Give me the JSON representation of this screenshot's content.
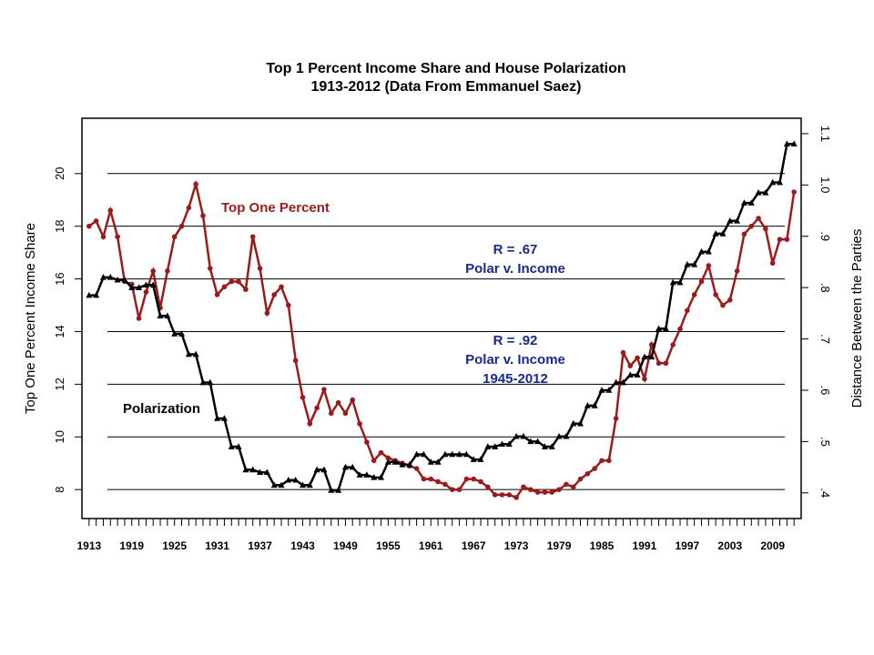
{
  "chart_data": {
    "type": "line",
    "title": "Top 1 Percent Income Share and House Polarization",
    "subtitle": "1913-2012 (Data From Emmanuel Saez)",
    "ylabel": "Top One Percent Income Share",
    "y2label": "Distance Between the Parties",
    "ylim": [
      6.9,
      22.1
    ],
    "y2lim": [
      0.35,
      1.13
    ],
    "xlim": [
      1912,
      2013
    ],
    "grid": "horizontal",
    "y_ticks": [
      "8",
      "10",
      "12",
      "14",
      "16",
      "18",
      "20"
    ],
    "y2_ticks": [
      ".4",
      ".5",
      ".6",
      ".7",
      ".8",
      ".9",
      "1.0",
      "1.1"
    ],
    "x_tick_labels": [
      "1913",
      "1919",
      "1925",
      "1931",
      "1937",
      "1943",
      "1949",
      "1955",
      "1961",
      "1967",
      "1973",
      "1979",
      "1985",
      "1991",
      "1997",
      "2003",
      "2009"
    ],
    "colors": {
      "income": "#9b1b1b",
      "polarization": "#000000",
      "annotation": "#1a2a8a"
    },
    "annotations": {
      "income_series_label": "Top One Percent",
      "polarization_series_label": "Polarization",
      "r1_line1": "R = .67",
      "r1_line2": "Polar v. Income",
      "r2_line1": "R = .92",
      "r2_line2": "Polar v. Income",
      "r2_line3": "1945-2012"
    },
    "series": [
      {
        "name": "Top One Percent",
        "axis": "left",
        "x": [
          1913,
          1914,
          1915,
          1916,
          1917,
          1918,
          1919,
          1920,
          1921,
          1922,
          1923,
          1924,
          1925,
          1926,
          1927,
          1928,
          1929,
          1930,
          1931,
          1932,
          1933,
          1934,
          1935,
          1936,
          1937,
          1938,
          1939,
          1940,
          1941,
          1942,
          1943,
          1944,
          1945,
          1946,
          1947,
          1948,
          1949,
          1950,
          1951,
          1952,
          1953,
          1954,
          1955,
          1956,
          1957,
          1958,
          1959,
          1960,
          1961,
          1962,
          1963,
          1964,
          1965,
          1966,
          1967,
          1968,
          1969,
          1970,
          1971,
          1972,
          1973,
          1974,
          1975,
          1976,
          1977,
          1978,
          1979,
          1980,
          1981,
          1982,
          1983,
          1984,
          1985,
          1986,
          1987,
          1988,
          1989,
          1990,
          1991,
          1992,
          1993,
          1994,
          1995,
          1996,
          1997,
          1998,
          1999,
          2000,
          2001,
          2002,
          2003,
          2004,
          2005,
          2006,
          2007,
          2008,
          2009,
          2010,
          2011,
          2012
        ],
        "values": [
          18.0,
          18.2,
          17.6,
          18.6,
          17.6,
          15.9,
          15.8,
          14.5,
          15.5,
          16.3,
          14.9,
          16.3,
          17.6,
          18.0,
          18.7,
          19.6,
          18.4,
          16.4,
          15.4,
          15.7,
          15.9,
          15.9,
          15.6,
          17.6,
          16.4,
          14.7,
          15.4,
          15.7,
          15.0,
          12.9,
          11.5,
          10.5,
          11.1,
          11.8,
          10.9,
          11.3,
          10.9,
          11.4,
          10.5,
          9.8,
          9.1,
          9.4,
          9.2,
          9.1,
          9.0,
          8.9,
          8.8,
          8.4,
          8.4,
          8.3,
          8.2,
          8.0,
          8.0,
          8.4,
          8.4,
          8.3,
          8.1,
          7.8,
          7.8,
          7.8,
          7.7,
          8.1,
          8.0,
          7.9,
          7.9,
          7.9,
          8.0,
          8.2,
          8.1,
          8.4,
          8.6,
          8.8,
          9.1,
          9.1,
          10.7,
          13.2,
          12.7,
          13.0,
          12.2,
          13.5,
          12.8,
          12.8,
          13.5,
          14.1,
          14.8,
          15.4,
          15.9,
          16.5,
          15.4,
          15.0,
          15.2,
          16.3,
          17.7,
          18.0,
          18.3,
          17.9,
          16.6,
          17.5,
          17.5,
          19.3
        ]
      },
      {
        "name": "Polarization",
        "axis": "right",
        "x": [
          1913,
          1914,
          1915,
          1916,
          1917,
          1918,
          1919,
          1920,
          1921,
          1922,
          1923,
          1924,
          1925,
          1926,
          1927,
          1928,
          1929,
          1930,
          1931,
          1932,
          1933,
          1934,
          1935,
          1936,
          1937,
          1938,
          1939,
          1940,
          1941,
          1942,
          1943,
          1944,
          1945,
          1946,
          1947,
          1948,
          1949,
          1950,
          1951,
          1952,
          1953,
          1954,
          1955,
          1956,
          1957,
          1958,
          1959,
          1960,
          1961,
          1962,
          1963,
          1964,
          1965,
          1966,
          1967,
          1968,
          1969,
          1970,
          1971,
          1972,
          1973,
          1974,
          1975,
          1976,
          1977,
          1978,
          1979,
          1980,
          1981,
          1982,
          1983,
          1984,
          1985,
          1986,
          1987,
          1988,
          1989,
          1990,
          1991,
          1992,
          1993,
          1994,
          1995,
          1996,
          1997,
          1998,
          1999,
          2000,
          2001,
          2002,
          2003,
          2004,
          2005,
          2006,
          2007,
          2008,
          2009,
          2010,
          2011,
          2012
        ],
        "values": [
          0.785,
          0.785,
          0.82,
          0.82,
          0.815,
          0.815,
          0.8,
          0.8,
          0.805,
          0.805,
          0.745,
          0.745,
          0.71,
          0.71,
          0.67,
          0.67,
          0.615,
          0.615,
          0.545,
          0.545,
          0.49,
          0.49,
          0.445,
          0.445,
          0.44,
          0.44,
          0.415,
          0.415,
          0.425,
          0.425,
          0.415,
          0.415,
          0.445,
          0.445,
          0.405,
          0.405,
          0.45,
          0.45,
          0.435,
          0.435,
          0.43,
          0.43,
          0.46,
          0.46,
          0.455,
          0.455,
          0.475,
          0.475,
          0.46,
          0.46,
          0.475,
          0.475,
          0.475,
          0.475,
          0.465,
          0.465,
          0.49,
          0.49,
          0.495,
          0.495,
          0.51,
          0.51,
          0.5,
          0.5,
          0.49,
          0.49,
          0.51,
          0.51,
          0.535,
          0.535,
          0.57,
          0.57,
          0.6,
          0.6,
          0.615,
          0.615,
          0.63,
          0.63,
          0.665,
          0.665,
          0.72,
          0.72,
          0.81,
          0.81,
          0.845,
          0.845,
          0.87,
          0.87,
          0.905,
          0.905,
          0.93,
          0.93,
          0.965,
          0.965,
          0.985,
          0.985,
          1.005,
          1.005,
          1.08,
          1.08
        ]
      }
    ]
  }
}
